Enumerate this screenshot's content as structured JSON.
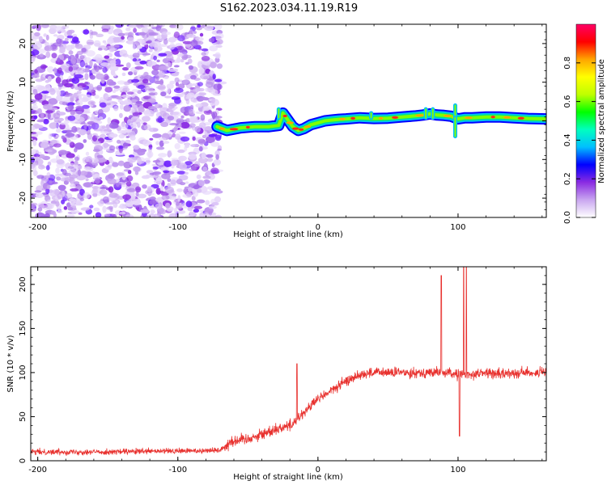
{
  "title": "S162.2023.034.11.19.R19",
  "chart_data": [
    {
      "type": "heatmap",
      "xlabel": "Height of straight line (km)",
      "ylabel": "Frequency (Hz)",
      "xlim": [
        -205,
        163
      ],
      "ylim": [
        -25,
        25
      ],
      "xticks": [
        -200,
        -100,
        0,
        100
      ],
      "yticks": [
        -20,
        -10,
        0,
        10,
        20
      ],
      "colorbar": {
        "label": "Normalized spectral amplitude",
        "range": [
          0,
          1
        ],
        "ticks": [
          0.0,
          0.2,
          0.4,
          0.6,
          0.8
        ],
        "colors": [
          "#ffffff",
          "#c9a6f0",
          "#8a2be2",
          "#0000ff",
          "#00bfff",
          "#00ffbf",
          "#00ff00",
          "#bfff00",
          "#ffff00",
          "#ffa500",
          "#ff0000",
          "#ff0066"
        ]
      },
      "ridge": {
        "x": [
          -72,
          -65,
          -55,
          -45,
          -35,
          -28,
          -25,
          -22,
          -18,
          -14,
          -10,
          -5,
          0,
          5,
          10,
          15,
          20,
          30,
          40,
          50,
          60,
          70,
          75,
          80,
          85,
          90,
          95,
          100,
          105,
          110,
          120,
          130,
          140,
          150,
          163
        ],
        "y": [
          -1.5,
          -2.5,
          -1.8,
          -1.5,
          -1.5,
          -1.2,
          2.0,
          0.5,
          -1.5,
          -2.5,
          -2.0,
          -1.0,
          -0.5,
          0.0,
          0.2,
          0.4,
          0.5,
          0.8,
          0.6,
          0.7,
          1.0,
          1.3,
          1.5,
          1.8,
          1.5,
          1.4,
          1.2,
          0.5,
          0.8,
          0.8,
          1.0,
          1.0,
          0.8,
          0.6,
          0.5
        ]
      }
    },
    {
      "type": "line",
      "xlabel": "Height of straight line (km)",
      "ylabel": "SNR (10 * v/v)",
      "xlim": [
        -205,
        163
      ],
      "ylim": [
        0,
        220
      ],
      "xticks": [
        -200,
        -100,
        0,
        100
      ],
      "yticks": [
        0,
        50,
        100,
        150,
        200
      ],
      "color": "#e8322f",
      "trend": {
        "x": [
          -205,
          -150,
          -100,
          -70,
          -62,
          -50,
          -40,
          -30,
          -20,
          -10,
          0,
          10,
          20,
          30,
          40,
          50,
          60,
          70,
          80,
          90,
          100,
          110,
          120,
          130,
          140,
          150,
          163
        ],
        "y": [
          10,
          10,
          11,
          12,
          22,
          25,
          30,
          36,
          40,
          55,
          70,
          80,
          90,
          98,
          100,
          100,
          100,
          100,
          100,
          100,
          98,
          98,
          100,
          98,
          100,
          100,
          100
        ]
      },
      "spikes": [
        {
          "x": -15,
          "y": 110
        },
        {
          "x": 88,
          "y": 210
        },
        {
          "x": 104,
          "y": 220
        },
        {
          "x": 106,
          "y": 220
        },
        {
          "x": 101,
          "y": 28
        }
      ]
    }
  ]
}
